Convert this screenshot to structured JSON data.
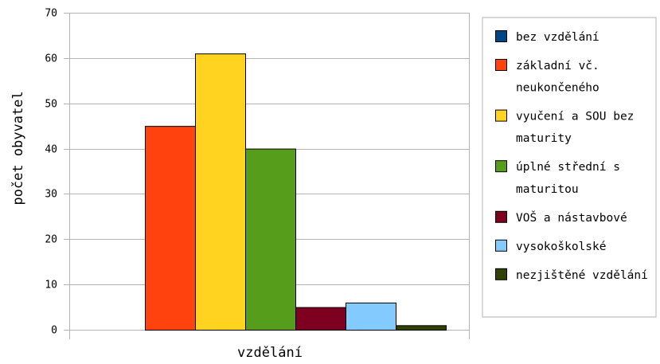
{
  "chart_data": {
    "type": "bar",
    "title": "",
    "xlabel": "vzdělání",
    "ylabel": "počet obyvatel",
    "ylim": [
      0,
      70
    ],
    "yticks": [
      0,
      10,
      20,
      30,
      40,
      50,
      60,
      70
    ],
    "grid": true,
    "legend_position": "right",
    "series": [
      {
        "name": "bez vzdělání",
        "legend_lines": [
          "bez vzdělání"
        ],
        "value": 0,
        "color": "#004586"
      },
      {
        "name": "základní vč. neukončeného",
        "legend_lines": [
          "základní vč.",
          "neukončeného"
        ],
        "value": 45,
        "color": "#ff420e"
      },
      {
        "name": "vyučení a SOU bez maturity",
        "legend_lines": [
          "vyučení a SOU bez",
          "maturity"
        ],
        "value": 61,
        "color": "#ffd320"
      },
      {
        "name": "úplné střední s maturitou",
        "legend_lines": [
          "úplné střední s",
          "maturitou"
        ],
        "value": 40,
        "color": "#579d1c"
      },
      {
        "name": "VOŠ a nástavbové",
        "legend_lines": [
          "VOŠ a nástavbové"
        ],
        "value": 5,
        "color": "#7e0021"
      },
      {
        "name": "vysokoškolské",
        "legend_lines": [
          "vysokoškolské"
        ],
        "value": 6,
        "color": "#83caff"
      },
      {
        "name": "nezjištěné vzdělání",
        "legend_lines": [
          "nezjištěné vzdělání"
        ],
        "value": 1,
        "color": "#314004"
      }
    ]
  }
}
